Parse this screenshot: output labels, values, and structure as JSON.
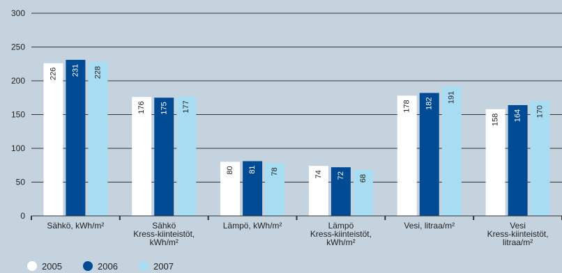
{
  "chart_data": {
    "type": "bar",
    "categories": [
      {
        "lines": [
          "Sähkö, kWh/m²"
        ]
      },
      {
        "lines": [
          "Sähkö",
          "Kress-kiinteistöt,",
          "kWh/m²"
        ]
      },
      {
        "lines": [
          "Lämpö, kWh/m²"
        ]
      },
      {
        "lines": [
          "Lämpö",
          "Kress-kiinteistöt,",
          "kWh/m²"
        ]
      },
      {
        "lines": [
          "Vesi, litraa/m²"
        ]
      },
      {
        "lines": [
          "Vesi",
          "Kress-kiinteistöt,",
          "litraa/m²"
        ]
      }
    ],
    "series": [
      {
        "name": "2005",
        "color": "#ffffff",
        "values": [
          226,
          176,
          80,
          74,
          178,
          158
        ]
      },
      {
        "name": "2006",
        "color": "#004b93",
        "values": [
          231,
          175,
          81,
          72,
          182,
          164
        ]
      },
      {
        "name": "2007",
        "color": "#a8dcf2",
        "values": [
          228,
          177,
          78,
          68,
          191,
          170
        ]
      }
    ],
    "ylim": [
      0,
      300
    ],
    "yticks": [
      0,
      50,
      100,
      150,
      200,
      250,
      300
    ],
    "grid": true,
    "legend_position": "bottom-left"
  }
}
